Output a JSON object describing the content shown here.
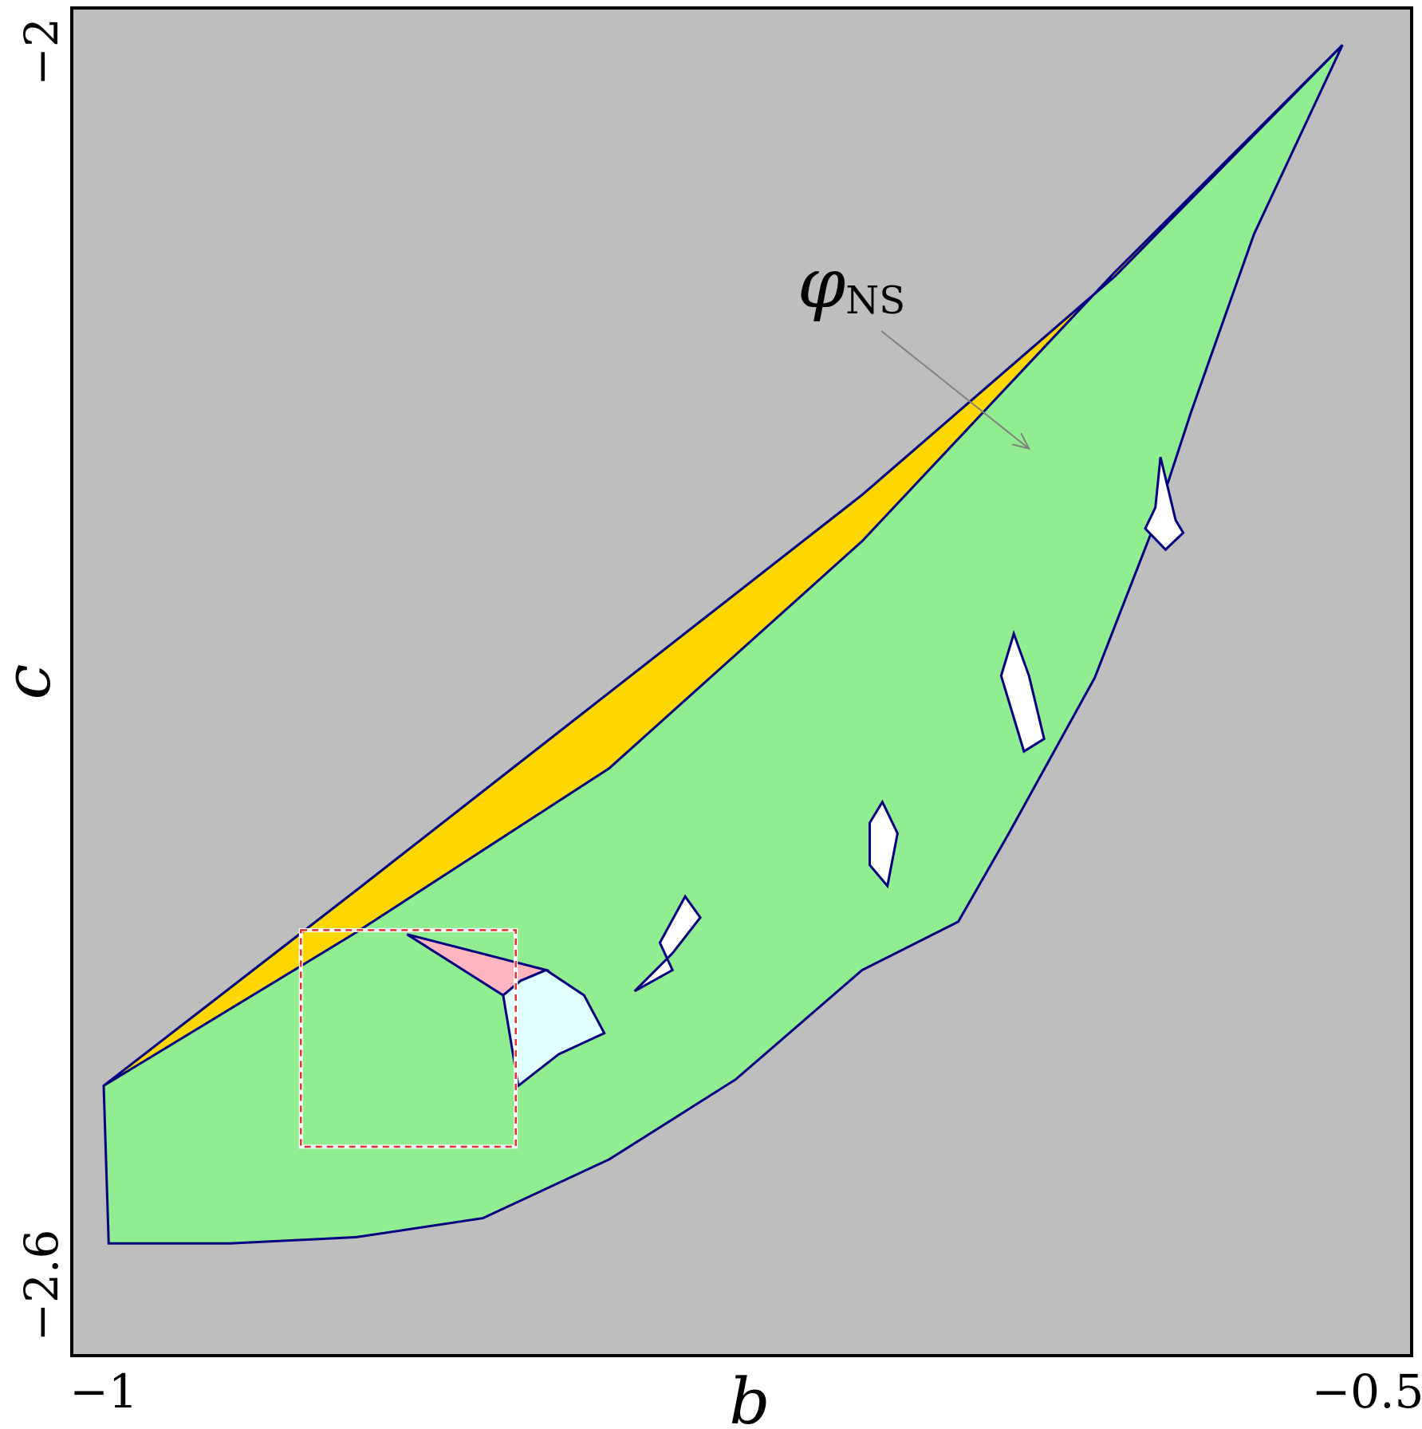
{
  "chart_data": {
    "type": "area",
    "title": "",
    "xlabel": "b",
    "ylabel": "c",
    "xlim": [
      -1,
      -0.5
    ],
    "ylim": [
      -2.6,
      -2
    ],
    "x_ticks": [
      "−1",
      "−0.5"
    ],
    "y_ticks": [
      "−2",
      "−2.6"
    ],
    "grid": false,
    "colors": {
      "background": "#bebebe",
      "green_region": "#90ee90",
      "yellow_region": "#ffd700",
      "boundary": "#000080",
      "pink_region": "#ffb6c1",
      "cyan_region": "#e0ffff",
      "white_region": "#ffffff",
      "arrow": "#808080",
      "inset_box": "#e03030"
    },
    "annotation": {
      "text": "φ",
      "subscript": "NS",
      "arrow_to": [
        -0.634,
        -2.202
      ]
    },
    "regions": {
      "yellow": {
        "upper": [
          [
            -1,
            -2.505
          ],
          [
            -0.9,
            -2.412
          ],
          [
            -0.8,
            -2.318
          ],
          [
            -0.7,
            -2.224
          ],
          [
            -0.6,
            -2.12
          ],
          [
            -0.51,
            -2.01
          ]
        ],
        "lower": [
          [
            -0.51,
            -2.01
          ],
          [
            -0.6,
            -2.118
          ],
          [
            -0.7,
            -2.246
          ],
          [
            -0.8,
            -2.354
          ],
          [
            -0.9,
            -2.432
          ],
          [
            -1,
            -2.505
          ]
        ]
      },
      "green_lower_boundary": [
        [
          -1,
          -2.505
        ],
        [
          -0.998,
          -2.58
        ],
        [
          -0.95,
          -2.58
        ],
        [
          -0.9,
          -2.577
        ],
        [
          -0.85,
          -2.568
        ],
        [
          -0.8,
          -2.54
        ],
        [
          -0.75,
          -2.502
        ],
        [
          -0.7,
          -2.45
        ],
        [
          -0.662,
          -2.427
        ],
        [
          -0.642,
          -2.385
        ],
        [
          -0.608,
          -2.311
        ],
        [
          -0.585,
          -2.24
        ],
        [
          -0.57,
          -2.185
        ],
        [
          -0.545,
          -2.1
        ],
        [
          -0.51,
          -2.01
        ]
      ],
      "white_patches": [
        [
          [
            -0.582,
            -2.206
          ],
          [
            -0.576,
            -2.236
          ],
          [
            -0.573,
            -2.242
          ],
          [
            -0.58,
            -2.25
          ],
          [
            -0.588,
            -2.24
          ],
          [
            -0.584,
            -2.23
          ]
        ],
        [
          [
            -0.64,
            -2.29
          ],
          [
            -0.634,
            -2.31
          ],
          [
            -0.628,
            -2.34
          ],
          [
            -0.636,
            -2.346
          ],
          [
            -0.64,
            -2.33
          ],
          [
            -0.645,
            -2.31
          ]
        ],
        [
          [
            -0.692,
            -2.37
          ],
          [
            -0.686,
            -2.385
          ],
          [
            -0.69,
            -2.41
          ],
          [
            -0.697,
            -2.4
          ],
          [
            -0.697,
            -2.38
          ]
        ],
        [
          [
            -0.77,
            -2.415
          ],
          [
            -0.764,
            -2.425
          ],
          [
            -0.775,
            -2.442
          ],
          [
            -0.79,
            -2.46
          ],
          [
            -0.775,
            -2.45
          ],
          [
            -0.78,
            -2.437
          ]
        ]
      ],
      "pink": [
        [
          -0.88,
          -2.433
        ],
        [
          -0.825,
          -2.45
        ],
        [
          -0.835,
          -2.455
        ],
        [
          -0.842,
          -2.462
        ]
      ],
      "cyan": [
        [
          -0.842,
          -2.462
        ],
        [
          -0.835,
          -2.455
        ],
        [
          -0.825,
          -2.45
        ],
        [
          -0.81,
          -2.462
        ],
        [
          -0.802,
          -2.48
        ],
        [
          -0.82,
          -2.49
        ],
        [
          -0.836,
          -2.505
        ]
      ]
    },
    "inset_rect": {
      "x": [
        -0.922,
        -0.837
      ],
      "y": [
        -2.431,
        -2.534
      ]
    }
  }
}
